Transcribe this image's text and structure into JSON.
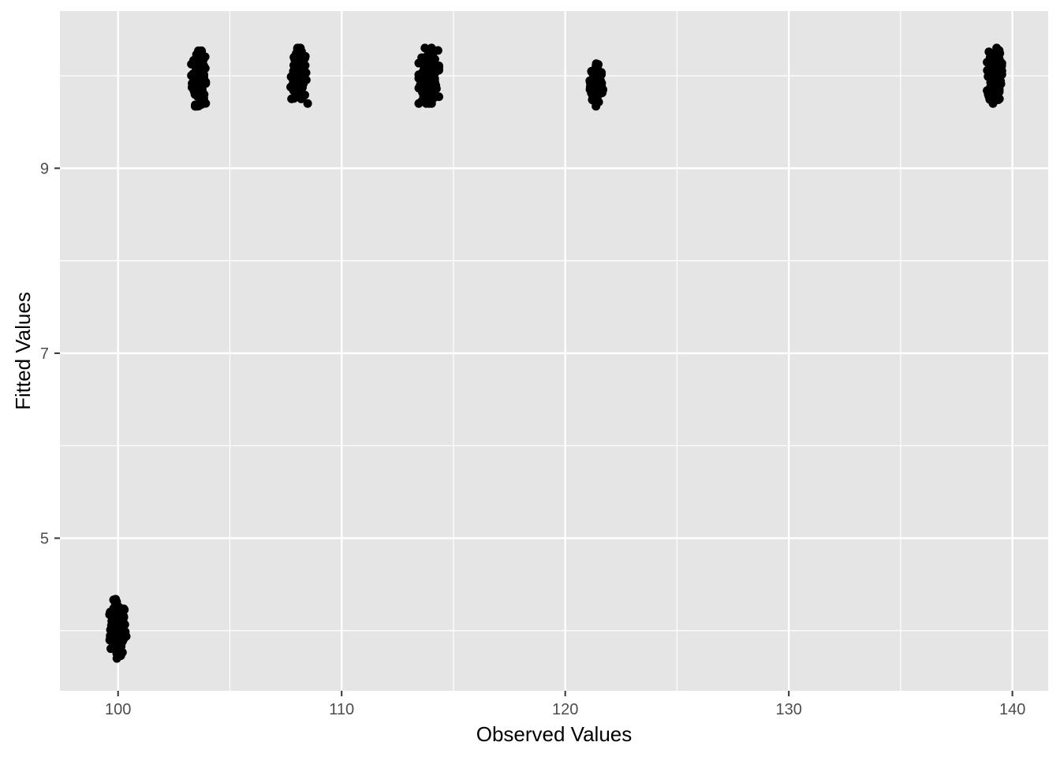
{
  "chart_data": {
    "type": "scatter",
    "xlabel": "Observed Values",
    "ylabel": "Fitted Values",
    "xlim": [
      97.4,
      141.6
    ],
    "ylim": [
      3.35,
      10.7
    ],
    "x_ticks": [
      100,
      110,
      120,
      130,
      140
    ],
    "y_ticks": [
      5,
      7,
      9
    ],
    "x_minor": [
      105,
      115,
      125,
      135
    ],
    "y_minor": [
      4,
      6,
      8,
      10
    ],
    "grid": true,
    "background": "#e5e5e5",
    "point_color": "#000000",
    "clusters": [
      {
        "x": 100.0,
        "y_center": 4.02,
        "y_spread": 0.32,
        "x_jitter": 0.38,
        "n": 160
      },
      {
        "x": 103.6,
        "y_center": 9.97,
        "y_spread": 0.3,
        "x_jitter": 0.32,
        "n": 140
      },
      {
        "x": 108.1,
        "y_center": 10.0,
        "y_spread": 0.3,
        "x_jitter": 0.38,
        "n": 140
      },
      {
        "x": 113.9,
        "y_center": 10.0,
        "y_spread": 0.3,
        "x_jitter": 0.45,
        "n": 150
      },
      {
        "x": 121.4,
        "y_center": 9.92,
        "y_spread": 0.25,
        "x_jitter": 0.3,
        "n": 110
      },
      {
        "x": 139.2,
        "y_center": 10.0,
        "y_spread": 0.3,
        "x_jitter": 0.33,
        "n": 140
      }
    ]
  }
}
